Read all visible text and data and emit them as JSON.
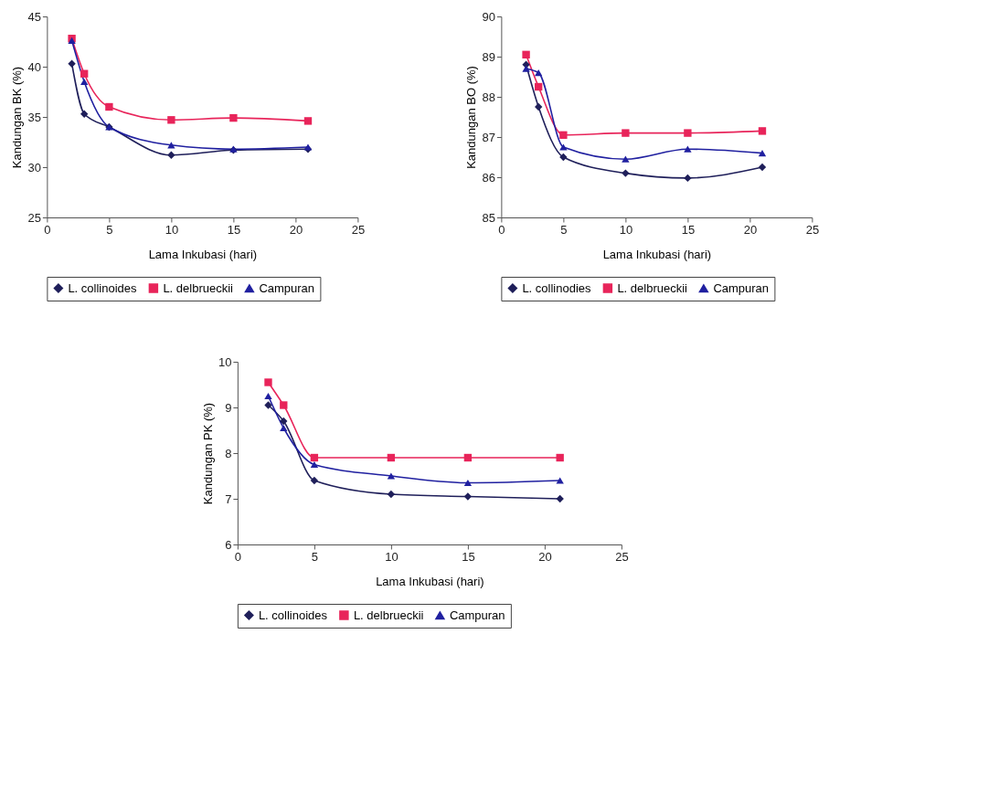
{
  "chart_data": [
    {
      "type": "line",
      "xlabel": "Lama Inkubasi (hari)",
      "ylabel": "Kandungan BK (%)",
      "x": [
        2,
        3,
        5,
        10,
        15,
        21
      ],
      "xlim": [
        0,
        25
      ],
      "xticks": [
        0,
        5,
        10,
        15,
        20,
        25
      ],
      "ylim": [
        25,
        45
      ],
      "yticks": [
        25,
        30,
        35,
        40,
        45
      ],
      "grid": false,
      "legend": "bottom",
      "line_style": "solid",
      "series": [
        {
          "name": "L. collinoides",
          "color": "#1f1f5a",
          "marker": "diamond",
          "values": [
            40.3,
            35.3,
            34.0,
            31.2,
            31.7,
            31.8
          ]
        },
        {
          "name": "L. delbrueckii",
          "color": "#e8245a",
          "marker": "square",
          "values": [
            42.8,
            39.3,
            36.0,
            34.7,
            34.9,
            34.6
          ]
        },
        {
          "name": "Campuran",
          "color": "#2020a0",
          "marker": "triangle",
          "values": [
            42.6,
            38.5,
            34.0,
            32.2,
            31.8,
            32.0
          ]
        }
      ]
    },
    {
      "type": "line",
      "xlabel": "Lama Inkubasi (hari)",
      "ylabel": "Kandungan BO (%)",
      "x": [
        2,
        3,
        5,
        10,
        15,
        21
      ],
      "xlim": [
        0,
        25
      ],
      "xticks": [
        0,
        5,
        10,
        15,
        20,
        25
      ],
      "ylim": [
        85,
        90
      ],
      "yticks": [
        85,
        86,
        87,
        88,
        89,
        90
      ],
      "grid": false,
      "legend": "bottom",
      "line_style": "solid",
      "series": [
        {
          "name": "L. collinodies",
          "color": "#1f1f5a",
          "marker": "diamond",
          "values": [
            88.8,
            87.75,
            86.5,
            86.1,
            85.98,
            86.25
          ]
        },
        {
          "name": "L. delbrueckii",
          "color": "#e8245a",
          "marker": "square",
          "values": [
            89.05,
            88.25,
            87.05,
            87.1,
            87.1,
            87.15
          ]
        },
        {
          "name": "Campuran",
          "color": "#2020a0",
          "marker": "triangle",
          "values": [
            88.7,
            88.6,
            86.75,
            86.45,
            86.7,
            86.6
          ]
        }
      ]
    },
    {
      "type": "line",
      "xlabel": "Lama Inkubasi (hari)",
      "ylabel": "Kandungan PK (%)",
      "x": [
        2,
        3,
        5,
        10,
        15,
        21
      ],
      "xlim": [
        0,
        25
      ],
      "xticks": [
        0,
        5,
        10,
        15,
        20,
        25
      ],
      "ylim": [
        6,
        10
      ],
      "yticks": [
        6,
        7,
        8,
        9,
        10
      ],
      "grid": false,
      "legend": "bottom",
      "line_style": "solid",
      "series": [
        {
          "name": "L. collinoides",
          "color": "#1f1f5a",
          "marker": "diamond",
          "values": [
            9.05,
            8.7,
            7.4,
            7.1,
            7.05,
            7.0
          ]
        },
        {
          "name": "L. delbrueckii",
          "color": "#e8245a",
          "marker": "square",
          "values": [
            9.55,
            9.05,
            7.9,
            7.9,
            7.9,
            7.9
          ]
        },
        {
          "name": "Campuran",
          "color": "#2020a0",
          "marker": "triangle",
          "values": [
            9.25,
            8.55,
            7.75,
            7.5,
            7.35,
            7.4
          ]
        }
      ]
    }
  ]
}
